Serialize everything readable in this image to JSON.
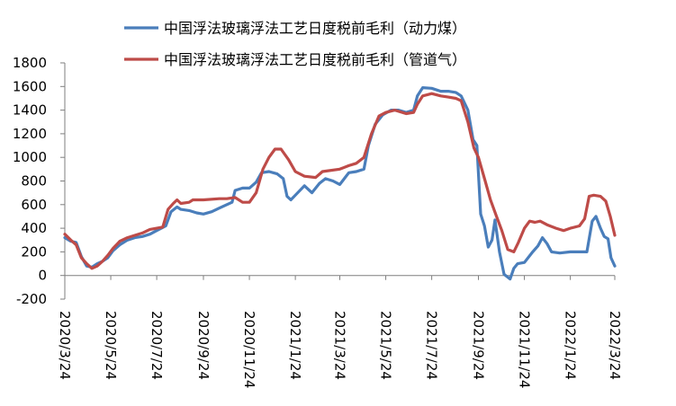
{
  "chart_data": {
    "type": "line",
    "ylim": [
      -200,
      1800
    ],
    "yticks": [
      "1800",
      "1600",
      "1400",
      "1200",
      "1000",
      "800",
      "600",
      "400",
      "200",
      "0",
      "-200"
    ],
    "ytick_values": [
      1800,
      1600,
      1400,
      1200,
      1000,
      800,
      600,
      400,
      200,
      0,
      -200
    ],
    "xlim": [
      "2020/3/24",
      "2022/3/24"
    ],
    "xticks": [
      "2020/3/24",
      "2020/5/24",
      "2020/7/24",
      "2020/9/24",
      "2020/11/24",
      "2021/1/24",
      "2021/3/24",
      "2021/5/24",
      "2021/7/24",
      "2021/9/24",
      "2021/11/24",
      "2022/1/24",
      "2022/3/24"
    ],
    "grid": false,
    "legend_position": "top-right",
    "series": [
      {
        "name": "中国浮法玻璃浮法工艺日度税前毛利（动力煤）",
        "color": "#4a7ebb",
        "points": [
          [
            "2020/3/24",
            320
          ],
          [
            "2020/4/1",
            290
          ],
          [
            "2020/4/8",
            280
          ],
          [
            "2020/4/15",
            160
          ],
          [
            "2020/4/22",
            80
          ],
          [
            "2020/4/29",
            70
          ],
          [
            "2020/5/6",
            100
          ],
          [
            "2020/5/13",
            120
          ],
          [
            "2020/5/20",
            150
          ],
          [
            "2020/5/27",
            210
          ],
          [
            "2020/6/5",
            260
          ],
          [
            "2020/6/15",
            300
          ],
          [
            "2020/6/25",
            320
          ],
          [
            "2020/7/5",
            330
          ],
          [
            "2020/7/15",
            350
          ],
          [
            "2020/7/24",
            380
          ],
          [
            "2020/8/5",
            420
          ],
          [
            "2020/8/12",
            540
          ],
          [
            "2020/8/20",
            580
          ],
          [
            "2020/8/25",
            560
          ],
          [
            "2020/9/5",
            550
          ],
          [
            "2020/9/15",
            530
          ],
          [
            "2020/9/24",
            520
          ],
          [
            "2020/10/5",
            540
          ],
          [
            "2020/10/15",
            570
          ],
          [
            "2020/10/25",
            600
          ],
          [
            "2020/11/1",
            620
          ],
          [
            "2020/11/5",
            720
          ],
          [
            "2020/11/15",
            740
          ],
          [
            "2020/11/24",
            740
          ],
          [
            "2020/12/3",
            790
          ],
          [
            "2020/12/10",
            870
          ],
          [
            "2020/12/20",
            880
          ],
          [
            "2020/12/31",
            860
          ],
          [
            "2021/1/8",
            820
          ],
          [
            "2021/1/13",
            670
          ],
          [
            "2021/1/18",
            640
          ],
          [
            "2021/1/24",
            680
          ],
          [
            "2021/2/5",
            760
          ],
          [
            "2021/2/15",
            700
          ],
          [
            "2021/2/25",
            780
          ],
          [
            "2021/3/5",
            820
          ],
          [
            "2021/3/15",
            800
          ],
          [
            "2021/3/24",
            770
          ],
          [
            "2021/4/5",
            870
          ],
          [
            "2021/4/15",
            880
          ],
          [
            "2021/4/25",
            900
          ],
          [
            "2021/5/1",
            1100
          ],
          [
            "2021/5/10",
            1280
          ],
          [
            "2021/5/20",
            1360
          ],
          [
            "2021/5/31",
            1400
          ],
          [
            "2021/6/10",
            1400
          ],
          [
            "2021/6/20",
            1380
          ],
          [
            "2021/6/30",
            1400
          ],
          [
            "2021/7/5",
            1520
          ],
          [
            "2021/7/12",
            1590
          ],
          [
            "2021/7/24",
            1585
          ],
          [
            "2021/8/5",
            1560
          ],
          [
            "2021/8/15",
            1560
          ],
          [
            "2021/8/25",
            1550
          ],
          [
            "2021/9/1",
            1520
          ],
          [
            "2021/9/10",
            1400
          ],
          [
            "2021/9/17",
            1150
          ],
          [
            "2021/9/22",
            1100
          ],
          [
            "2021/9/27",
            520
          ],
          [
            "2021/10/2",
            420
          ],
          [
            "2021/10/7",
            240
          ],
          [
            "2021/10/12",
            300
          ],
          [
            "2021/10/16",
            470
          ],
          [
            "2021/10/22",
            200
          ],
          [
            "2021/10/28",
            10
          ],
          [
            "2021/11/5",
            -30
          ],
          [
            "2021/11/10",
            60
          ],
          [
            "2021/11/15",
            100
          ],
          [
            "2021/11/24",
            110
          ],
          [
            "2021/12/5",
            200
          ],
          [
            "2021/12/12",
            250
          ],
          [
            "2021/12/18",
            320
          ],
          [
            "2021/12/24",
            270
          ],
          [
            "2021/12/30",
            200
          ],
          [
            "2022/1/10",
            190
          ],
          [
            "2022/1/24",
            200
          ],
          [
            "2022/2/5",
            200
          ],
          [
            "2022/2/15",
            200
          ],
          [
            "2022/2/22",
            460
          ],
          [
            "2022/2/27",
            500
          ],
          [
            "2022/3/5",
            400
          ],
          [
            "2022/3/10",
            330
          ],
          [
            "2022/3/15",
            310
          ],
          [
            "2022/3/19",
            150
          ],
          [
            "2022/3/24",
            80
          ]
        ]
      },
      {
        "name": "中国浮法玻璃浮法工艺日度税前毛利（管道气）",
        "color": "#be4b48",
        "points": [
          [
            "2020/3/24",
            350
          ],
          [
            "2020/4/1",
            300
          ],
          [
            "2020/4/8",
            260
          ],
          [
            "2020/4/15",
            150
          ],
          [
            "2020/4/22",
            100
          ],
          [
            "2020/4/29",
            60
          ],
          [
            "2020/5/6",
            80
          ],
          [
            "2020/5/13",
            120
          ],
          [
            "2020/5/20",
            170
          ],
          [
            "2020/5/27",
            230
          ],
          [
            "2020/6/5",
            290
          ],
          [
            "2020/6/15",
            320
          ],
          [
            "2020/6/25",
            340
          ],
          [
            "2020/7/5",
            360
          ],
          [
            "2020/7/15",
            390
          ],
          [
            "2020/7/24",
            400
          ],
          [
            "2020/8/1",
            410
          ],
          [
            "2020/8/8",
            560
          ],
          [
            "2020/8/15",
            610
          ],
          [
            "2020/8/20",
            640
          ],
          [
            "2020/8/25",
            610
          ],
          [
            "2020/9/5",
            620
          ],
          [
            "2020/9/10",
            640
          ],
          [
            "2020/9/24",
            640
          ],
          [
            "2020/10/15",
            650
          ],
          [
            "2020/10/25",
            650
          ],
          [
            "2020/11/5",
            660
          ],
          [
            "2020/11/15",
            620
          ],
          [
            "2020/11/24",
            620
          ],
          [
            "2020/12/3",
            700
          ],
          [
            "2020/12/12",
            900
          ],
          [
            "2020/12/20",
            1000
          ],
          [
            "2020/12/28",
            1070
          ],
          [
            "2021/1/5",
            1070
          ],
          [
            "2021/1/15",
            980
          ],
          [
            "2021/1/24",
            880
          ],
          [
            "2021/2/5",
            840
          ],
          [
            "2021/2/20",
            830
          ],
          [
            "2021/3/1",
            880
          ],
          [
            "2021/3/24",
            900
          ],
          [
            "2021/4/5",
            930
          ],
          [
            "2021/4/15",
            950
          ],
          [
            "2021/4/25",
            1000
          ],
          [
            "2021/5/5",
            1200
          ],
          [
            "2021/5/15",
            1350
          ],
          [
            "2021/5/24",
            1380
          ],
          [
            "2021/6/5",
            1400
          ],
          [
            "2021/6/20",
            1370
          ],
          [
            "2021/6/30",
            1380
          ],
          [
            "2021/7/5",
            1450
          ],
          [
            "2021/7/12",
            1520
          ],
          [
            "2021/7/24",
            1540
          ],
          [
            "2021/8/5",
            1520
          ],
          [
            "2021/8/15",
            1510
          ],
          [
            "2021/8/25",
            1500
          ],
          [
            "2021/9/1",
            1480
          ],
          [
            "2021/9/10",
            1300
          ],
          [
            "2021/9/18",
            1080
          ],
          [
            "2021/9/24",
            1000
          ],
          [
            "2021/10/3",
            800
          ],
          [
            "2021/10/10",
            640
          ],
          [
            "2021/10/18",
            500
          ],
          [
            "2021/10/25",
            380
          ],
          [
            "2021/11/2",
            220
          ],
          [
            "2021/11/10",
            200
          ],
          [
            "2021/11/16",
            280
          ],
          [
            "2021/11/24",
            400
          ],
          [
            "2021/12/1",
            460
          ],
          [
            "2021/12/8",
            450
          ],
          [
            "2021/12/15",
            460
          ],
          [
            "2021/12/24",
            430
          ],
          [
            "2022/1/5",
            400
          ],
          [
            "2022/1/15",
            380
          ],
          [
            "2022/1/24",
            400
          ],
          [
            "2022/2/5",
            420
          ],
          [
            "2022/2/12",
            480
          ],
          [
            "2022/2/18",
            670
          ],
          [
            "2022/2/24",
            680
          ],
          [
            "2022/3/5",
            670
          ],
          [
            "2022/3/12",
            630
          ],
          [
            "2022/3/18",
            500
          ],
          [
            "2022/3/24",
            340
          ]
        ]
      }
    ]
  }
}
